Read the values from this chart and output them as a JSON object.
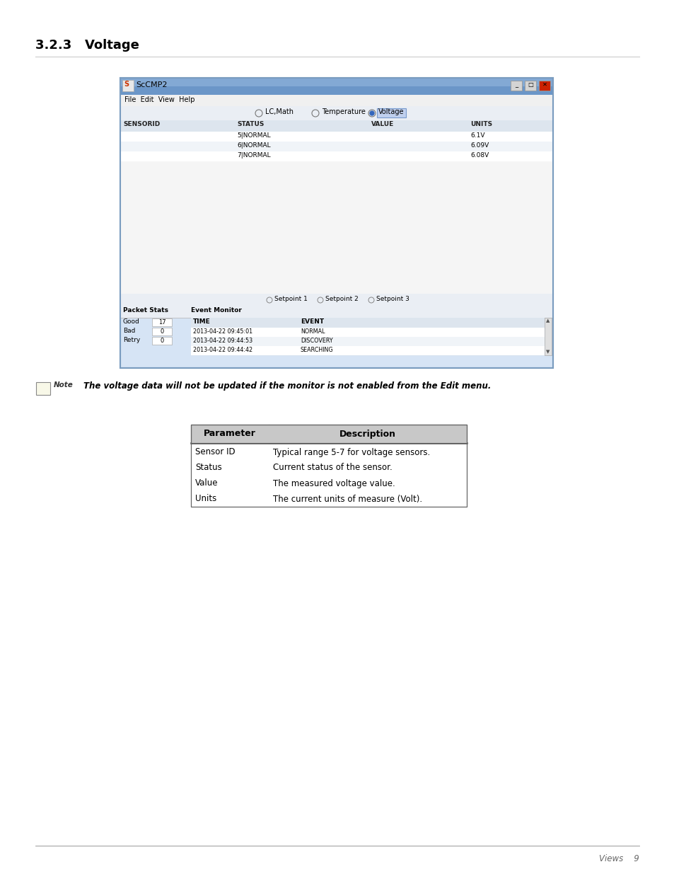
{
  "title": "3.2.3   Voltage",
  "page_bg": "#ffffff",
  "footer_text_right": "Views    9",
  "note_text": "The voltage data will not be updated if the monitor is not enabled from the Edit menu.",
  "table_headers": [
    "Parameter",
    "Description"
  ],
  "table_rows": [
    [
      "Sensor ID",
      "Typical range 5-7 for voltage sensors."
    ],
    [
      "Status",
      "Current status of the sensor."
    ],
    [
      "Value",
      "The measured voltage value."
    ],
    [
      "Units",
      "The current units of measure (Volt)."
    ]
  ],
  "screenshot": {
    "title_bar": "ScCMP2",
    "menu": "File  Edit  View  Help",
    "radio_options": [
      "LC,Math",
      "Temperature",
      "Voltage"
    ],
    "radio_selected": 2,
    "col_headers": [
      "SENSORID",
      "STATUS",
      "VALUE",
      "UNITS"
    ],
    "data_rows": [
      [
        "",
        "5|NORMAL",
        "",
        "6.1V"
      ],
      [
        "",
        "6|NORMAL",
        "",
        "6.09V"
      ],
      [
        "",
        "7|NORMAL",
        "",
        "6.08V"
      ]
    ],
    "setpoints": [
      "Setpoint 1",
      "Setpoint 2",
      "Setpoint 3"
    ],
    "packet_stats": [
      [
        "Good",
        "17"
      ],
      [
        "Bad",
        "0"
      ],
      [
        "Retry",
        "0"
      ]
    ],
    "event_header": [
      "TIME",
      "EVENT"
    ],
    "event_rows": [
      [
        "2013-04-22 09:45:01",
        "NORMAL"
      ],
      [
        "2013-04-22 09:44:53",
        "DISCOVERY"
      ],
      [
        "2013-04-22 09:44:42",
        "SEARCHING"
      ]
    ]
  }
}
